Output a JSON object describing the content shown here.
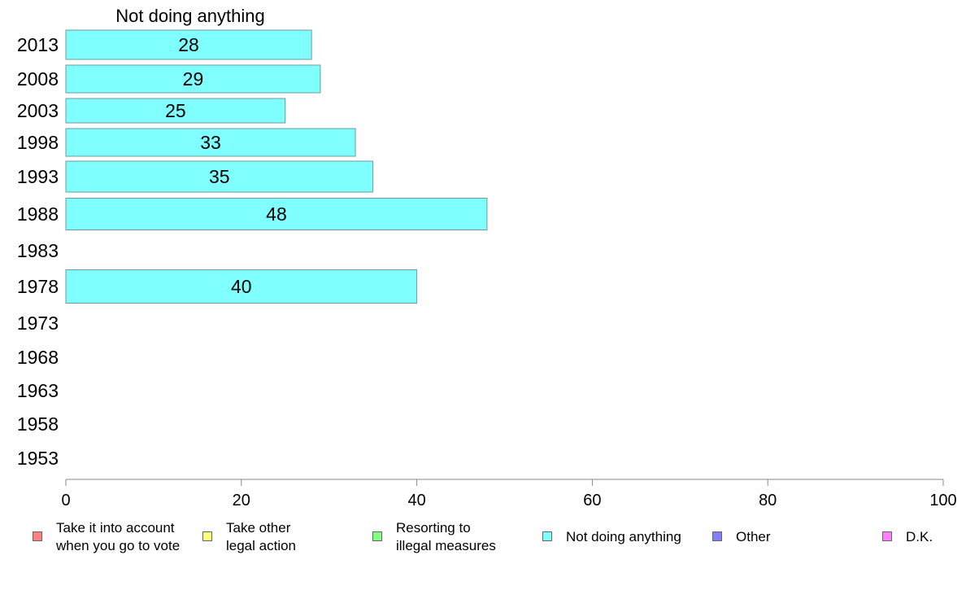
{
  "chart_data": {
    "type": "bar",
    "orientation": "horizontal",
    "title": "Not doing anything",
    "categories": [
      "2013",
      "2008",
      "2003",
      "1998",
      "1993",
      "1988",
      "1983",
      "1978",
      "1973",
      "1968",
      "1963",
      "1958",
      "1953"
    ],
    "values": [
      28,
      29,
      25,
      33,
      35,
      48,
      null,
      40,
      null,
      null,
      null,
      null,
      null
    ],
    "xlim": [
      0,
      100
    ],
    "xticks": [
      "0",
      "20",
      "40",
      "60",
      "80",
      "100"
    ],
    "grid": false,
    "bar_color": "#80ffff",
    "legend": {
      "placement": "bottom",
      "entries": [
        {
          "label": "Take it into account\nwhen you go to vote",
          "color": "#ff8080"
        },
        {
          "label": "Take other\nlegal action",
          "color": "#ffff80"
        },
        {
          "label": "Resorting to\nillegal measures",
          "color": "#80ff80"
        },
        {
          "label": "Not doing anything",
          "color": "#80ffff"
        },
        {
          "label": "Other",
          "color": "#8080ff"
        },
        {
          "label": "D.K.",
          "color": "#ff80ff"
        }
      ]
    }
  }
}
